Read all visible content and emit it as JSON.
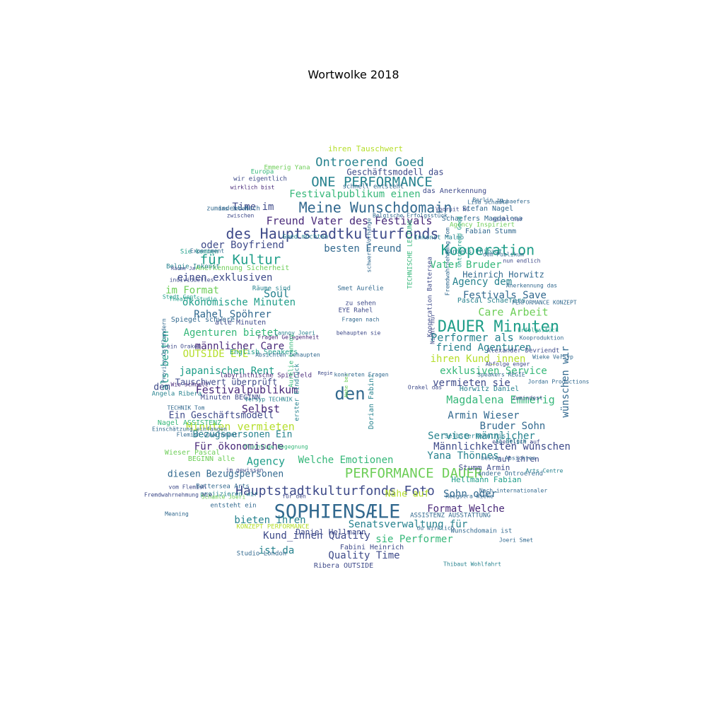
{
  "title": "Wortwolke 2018",
  "palette": [
    "#440154",
    "#482878",
    "#3e4a89",
    "#31688e",
    "#26828e",
    "#1f9e89",
    "#35b779",
    "#6ece58",
    "#b5de2b",
    "#fde725"
  ],
  "words": [
    {
      "text": "SOPHIENSÆLE",
      "c": 3
    },
    {
      "text": "DAUER Minuten",
      "c": 5
    },
    {
      "text": "ONE PERFORMANCE",
      "c": 4
    },
    {
      "text": "des Hauptstadtkulturfonds",
      "c": 2
    },
    {
      "text": "Meine Wunschdomain",
      "c": 3
    },
    {
      "text": "Kooperation",
      "c": 5
    },
    {
      "text": "PERFORMANCE DAUER",
      "c": 7
    },
    {
      "text": "Hauptstadtkulturfonds Foto",
      "c": 2
    },
    {
      "text": "den",
      "c": 3
    },
    {
      "text": "für Kultur",
      "c": 5
    },
    {
      "text": "Ontroerend Goed",
      "c": 4
    },
    {
      "text": "Festivalpublikum einen",
      "c": 6
    },
    {
      "text": "Freund Vater des Festivals",
      "c": 1
    },
    {
      "text": "Time im",
      "c": 2
    },
    {
      "text": "oder Boyfriend",
      "c": 2
    },
    {
      "text": "besten Freund",
      "c": 3
    },
    {
      "text": "Geschäftsmodell das",
      "c": 2
    },
    {
      "text": "ihren Tauschwert",
      "c": 8
    },
    {
      "text": "Festivalpublikum",
      "c": 1
    },
    {
      "text": "Selbst",
      "c": 1
    },
    {
      "text": "Magdalena Emmerig",
      "c": 6
    },
    {
      "text": "Performer als",
      "c": 4
    },
    {
      "text": "friend Agenturen",
      "c": 4
    },
    {
      "text": "ihren Kund_innen",
      "c": 8
    },
    {
      "text": "exklusiven Service",
      "c": 6
    },
    {
      "text": "Vater Bruder",
      "c": 6
    },
    {
      "text": "Agency dem",
      "c": 4
    },
    {
      "text": "Festivals Save",
      "c": 3
    },
    {
      "text": "Care Arbeit",
      "c": 7
    },
    {
      "text": "Heinrich Horwitz",
      "c": 3
    },
    {
      "text": "Rahel Spöhrer",
      "c": 3
    },
    {
      "text": "Soul",
      "c": 4
    },
    {
      "text": "ökonomische Minuten",
      "c": 5
    },
    {
      "text": "Agenturen bietet",
      "c": 6
    },
    {
      "text": "männlicher Care",
      "c": 1
    },
    {
      "text": "OUTSIDE EYE",
      "c": 8
    },
    {
      "text": "japanischen Rent",
      "c": 5
    },
    {
      "text": "einen exklusiven",
      "c": 2
    },
    {
      "text": "im Format",
      "c": 7
    },
    {
      "text": "Minuten vermieten",
      "c": 8
    },
    {
      "text": "Bezugspersonen Ein",
      "c": 4
    },
    {
      "text": "Für ökonomische",
      "c": 1
    },
    {
      "text": "Agency",
      "c": 5
    },
    {
      "text": "Welche Emotionen",
      "c": 6
    },
    {
      "text": "Yana Thönnes",
      "c": 4
    },
    {
      "text": "Männlichkeiten wünschen",
      "c": 2
    },
    {
      "text": "Service männlicher",
      "c": 4
    },
    {
      "text": "Bruder Sohn",
      "c": 3
    },
    {
      "text": "Armin Wieser",
      "c": 3
    },
    {
      "text": "vermieten sie",
      "c": 2
    },
    {
      "text": "Sohn oder",
      "c": 3
    },
    {
      "text": "Format Welche",
      "c": 1
    },
    {
      "text": "Kund_innen Quality",
      "c": 2
    },
    {
      "text": "Senatsverwaltung für",
      "c": 4
    },
    {
      "text": "bieten ihren",
      "c": 4
    },
    {
      "text": "sie Performer",
      "c": 6
    },
    {
      "text": "ist da",
      "c": 4
    },
    {
      "text": "Quality Time",
      "c": 2
    },
    {
      "text": "Ein Geschäftsmodell",
      "c": 2
    },
    {
      "text": "diesen Bezugspersonen",
      "c": 3
    },
    {
      "text": "wünschen wir",
      "c": 3
    },
    {
      "text": "als besten",
      "c": 5
    },
    {
      "text": "dem",
      "c": 2
    },
    {
      "text": "Daniel Hellmann",
      "c": 2
    },
    {
      "text": "Nähe auf",
      "c": 8
    },
    {
      "text": "Hellmann Fabian",
      "c": 5
    },
    {
      "text": "Stumm Armin",
      "c": 2
    },
    {
      "text": "auf ihren",
      "c": 2
    },
    {
      "text": "Fabini Heinrich",
      "c": 2
    },
    {
      "text": "Ribera OUTSIDE",
      "c": 2
    },
    {
      "text": "Schaefers Magdalena",
      "c": 3
    },
    {
      "text": "Stefan Nagel",
      "c": 3
    },
    {
      "text": "Fabian Stumm",
      "c": 3
    },
    {
      "text": "Dorian Fabini",
      "c": 4
    },
    {
      "text": "Smet Aurélie",
      "c": 3
    },
    {
      "text": "EYE Rahel",
      "c": 2
    },
    {
      "text": "behaupten sie",
      "c": 2
    },
    {
      "text": "Fragen nach",
      "c": 3
    },
    {
      "text": "Pascal Schaefers",
      "c": 4
    },
    {
      "text": "Alexander Devriendt",
      "c": 2
    },
    {
      "text": "Horwitz Daniel",
      "c": 4
    },
    {
      "text": "Selbsterkenntnis",
      "c": 4
    },
    {
      "text": "Tauschwert überprüft",
      "c": 2
    },
    {
      "text": "English Speakers",
      "c": 5
    },
    {
      "text": "Spiegel schwere",
      "c": 3
    },
    {
      "text": "alle Minuten",
      "c": 2
    },
    {
      "text": "Anerkennung Sicherheit",
      "c": 7
    },
    {
      "text": "Nagel ASSISTENZ",
      "c": 6
    },
    {
      "text": "Angela Ribera",
      "c": 4
    },
    {
      "text": "Minuten BEGINN",
      "c": 2
    },
    {
      "text": "Wieser Pascal",
      "c": 7
    },
    {
      "text": "BEGINN alle",
      "c": 7
    },
    {
      "text": "Battersea Arts",
      "c": 3
    },
    {
      "text": "entsteht ein",
      "c": 3
    },
    {
      "text": "projizieren wir",
      "c": 4
    },
    {
      "text": "KONZEPT PERFORMANCE",
      "c": 8
    },
    {
      "text": "Studio London",
      "c": 3
    },
    {
      "text": "ASSISTENZ AUSSTATTUNG",
      "c": 3
    },
    {
      "text": "Wunschdomain ist",
      "c": 3
    },
    {
      "text": "Inkonst Malmö",
      "c": 4
    },
    {
      "text": "das Anerkennung",
      "c": 2
    },
    {
      "text": "schnell entsteht",
      "c": 3
    },
    {
      "text": "Emmerig Yana",
      "c": 7
    },
    {
      "text": "Europa",
      "c": 6
    },
    {
      "text": "wir eigentlich",
      "c": 2
    },
    {
      "text": "zumindest Nach",
      "c": 3
    },
    {
      "text": "Goed möchten",
      "c": 4
    },
    {
      "text": "Agency Inspiriert",
      "c": 7
    },
    {
      "text": "Erfolgsstück",
      "c": 5
    },
    {
      "text": "Wieke Versyp",
      "c": 3
    },
    {
      "text": "Kooproduktion",
      "c": 3
    },
    {
      "text": "Abfolge enger",
      "c": 2
    },
    {
      "text": "Vooruit KC",
      "c": 2
    },
    {
      "text": "Berlin zu",
      "c": 3
    },
    {
      "text": "labyrinthische Spielfeld",
      "c": 1
    },
    {
      "text": "Räume sind",
      "c": 4
    },
    {
      "text": "Sie kommen",
      "c": 5
    },
    {
      "text": "Meaning",
      "c": 3
    },
    {
      "text": "vom Flemish",
      "c": 2
    },
    {
      "text": "zu sehen",
      "c": 2
    },
    {
      "text": "Flemish Government",
      "c": 3
    },
    {
      "text": "TECHNIK Tom",
      "c": 3
    },
    {
      "text": "Daniels Thibaut",
      "c": 4
    },
    {
      "text": "Lisa Schamlé",
      "c": 3
    },
    {
      "text": "nun endlich",
      "c": 2
    },
    {
      "text": "Heegstra Wieke",
      "c": 3
    },
    {
      "text": "Thibaut Wohlfahrt",
      "c": 4
    },
    {
      "text": "Joeri Smet",
      "c": 3
    },
    {
      "text": "besten Absichten",
      "c": 3
    },
    {
      "text": "Nach internationaler",
      "c": 3
    },
    {
      "text": "andere Ontroerend",
      "c": 3
    },
    {
      "text": "Fremdwahrnehmung Wie",
      "c": 2
    },
    {
      "text": "eigentlich auf",
      "c": 2
    },
    {
      "text": "Arts Centre",
      "c": 4
    },
    {
      "text": "KC België",
      "c": 4
    },
    {
      "text": "Lannoy Joeri",
      "c": 4
    },
    {
      "text": "Fragen Gelegenheit",
      "c": 1
    },
    {
      "text": "wirklich bist",
      "c": 1
    },
    {
      "text": "das Jedem",
      "c": 3
    },
    {
      "text": "Belgie Inkonst",
      "c": 4
    },
    {
      "text": "Theatre Studio",
      "c": 5
    },
    {
      "text": "Provinz Ostflandern",
      "c": 3
    },
    {
      "text": "individuelles",
      "c": 2
    },
    {
      "text": "Absichten behaupten",
      "c": 3
    },
    {
      "text": "ein Orakel",
      "c": 2
    },
    {
      "text": "Regie",
      "c": 2
    },
    {
      "text": "Nahe bei",
      "c": 7
    },
    {
      "text": "konkreten Fragen",
      "c": 3
    },
    {
      "text": "schwere Vorhänge",
      "c": 3
    },
    {
      "text": "dem Publikum",
      "c": 3
    },
    {
      "text": "PERFORMANCE KONZEPT",
      "c": 3
    },
    {
      "text": "Speakers REGIE",
      "c": 3
    },
    {
      "text": "Einschätzung einfangen",
      "c": 3
    },
    {
      "text": "Kooperation Battersea",
      "c": 2
    },
    {
      "text": "TECHNISCHE LEITUNG",
      "c": 6
    },
    {
      "text": "Wie schnell",
      "c": 1
    },
    {
      "text": "Fremdwahrnehmung Tom",
      "c": 3
    },
    {
      "text": "Nicht nur",
      "c": 2
    },
    {
      "text": "Jordan Productions",
      "c": 3
    },
    {
      "text": "Stadt Gent",
      "c": 5
    },
    {
      "text": "Experiment",
      "c": 3
    },
    {
      "text": "Räume Ja",
      "c": 2
    },
    {
      "text": "Schamlé Joeri",
      "c": 7
    },
    {
      "text": "für den",
      "c": 2
    },
    {
      "text": "Aurélie Lannoy",
      "c": 6
    },
    {
      "text": "erster Eindruck",
      "c": 4
    },
    {
      "text": "flüchtige Begegnung",
      "c": 6
    },
    {
      "text": "Orakel das",
      "c": 2
    },
    {
      "text": "im gewissen",
      "c": 2
    },
    {
      "text": "Anerkennung das",
      "c": 3
    },
    {
      "text": "du wirklich",
      "c": 3
    },
    {
      "text": "Belgische Erfolgsstück",
      "c": 3
    },
    {
      "text": "zwischen",
      "c": 2
    },
    {
      "text": "Ontroerend Goed",
      "c": 5
    },
    {
      "text": "zumindest",
      "c": 2
    },
    {
      "text": "nicht nur",
      "c": 2
    },
    {
      "text": "Versyp TECHNIK",
      "c": 4
    },
    {
      "text": "Schaefers",
      "c": 3
    },
    {
      "text": "Performer",
      "c": 5
    }
  ]
}
